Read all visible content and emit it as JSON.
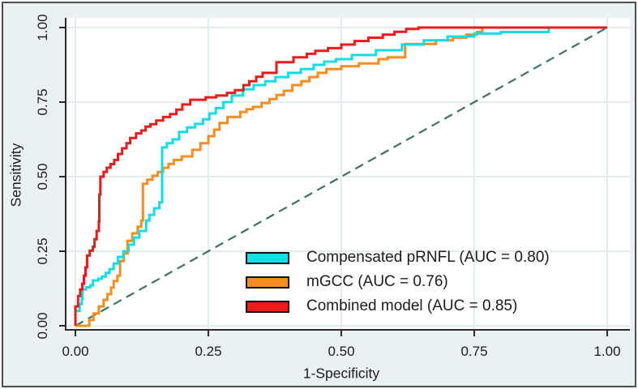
{
  "colors": {
    "figure_background": "#eaf1f3",
    "plot_background": "#ffffff",
    "grid": "#e3edef",
    "axis": "#2b2b2b",
    "text": "#1b1b1b",
    "frame_border": "#4f4f4f"
  },
  "chart_data": {
    "type": "line",
    "subtype": "roc-step-curves",
    "xlabel": "1-Specificity",
    "ylabel": "Sensitivity",
    "xlim": [
      0,
      1
    ],
    "ylim": [
      0,
      1
    ],
    "grid": "both, light bluish-gray on white",
    "legend_position": "inside lower-right of plot",
    "x_ticks": [
      {
        "label": "0.00",
        "value": 0
      },
      {
        "label": "0.25",
        "value": 0.25
      },
      {
        "label": "0.50",
        "value": 0.5
      },
      {
        "label": "0.75",
        "value": 0.75
      },
      {
        "label": "1.00",
        "value": 1
      }
    ],
    "y_ticks": [
      {
        "label": "0.00",
        "value": 0
      },
      {
        "label": "0.25",
        "value": 0.25
      },
      {
        "label": "0.50",
        "value": 0.5
      },
      {
        "label": "0.75",
        "value": 0.75
      },
      {
        "label": "1.00",
        "value": 1
      }
    ],
    "reference_line": {
      "name": "chance diagonal",
      "from": [
        0,
        0
      ],
      "to": [
        1,
        1
      ],
      "style": "dashed",
      "color": "#3c7164"
    },
    "series": [
      {
        "name": "Compensated pRNFL",
        "auc": 0.8,
        "legend_label": "Compensated pRNFL (AUC = 0.80)",
        "color": "#10dde6",
        "points": [
          [
            0,
            0
          ],
          [
            0,
            0.05
          ],
          [
            0.008,
            0.073
          ],
          [
            0.012,
            0.09
          ],
          [
            0.013,
            0.122
          ],
          [
            0.02,
            0.129
          ],
          [
            0.028,
            0.136
          ],
          [
            0.033,
            0.152
          ],
          [
            0.043,
            0.158
          ],
          [
            0.05,
            0.165
          ],
          [
            0.057,
            0.177
          ],
          [
            0.064,
            0.19
          ],
          [
            0.072,
            0.209
          ],
          [
            0.08,
            0.231
          ],
          [
            0.09,
            0.25
          ],
          [
            0.1,
            0.272
          ],
          [
            0.11,
            0.296
          ],
          [
            0.12,
            0.318
          ],
          [
            0.133,
            0.353
          ],
          [
            0.139,
            0.372
          ],
          [
            0.148,
            0.394
          ],
          [
            0.158,
            0.414
          ],
          [
            0.163,
            0.598
          ],
          [
            0.172,
            0.612
          ],
          [
            0.183,
            0.625
          ],
          [
            0.195,
            0.65
          ],
          [
            0.21,
            0.665
          ],
          [
            0.225,
            0.677
          ],
          [
            0.24,
            0.692
          ],
          [
            0.252,
            0.712
          ],
          [
            0.264,
            0.73
          ],
          [
            0.278,
            0.75
          ],
          [
            0.294,
            0.772
          ],
          [
            0.315,
            0.793
          ],
          [
            0.335,
            0.807
          ],
          [
            0.357,
            0.82
          ],
          [
            0.376,
            0.834
          ],
          [
            0.4,
            0.848
          ],
          [
            0.424,
            0.861
          ],
          [
            0.448,
            0.875
          ],
          [
            0.468,
            0.886
          ],
          [
            0.49,
            0.894
          ],
          [
            0.52,
            0.908
          ],
          [
            0.565,
            0.924
          ],
          [
            0.614,
            0.943
          ],
          [
            0.655,
            0.957
          ],
          [
            0.7,
            0.97
          ],
          [
            0.75,
            0.98
          ],
          [
            0.8,
            0.985
          ],
          [
            0.888,
            0.985
          ],
          [
            0.89,
            1
          ],
          [
            1,
            1
          ]
        ]
      },
      {
        "name": "mGCC",
        "auc": 0.76,
        "legend_label": "mGCC (AUC = 0.76)",
        "color": "#f68d1e",
        "points": [
          [
            0,
            0
          ],
          [
            0.026,
            0.019
          ],
          [
            0.034,
            0.041
          ],
          [
            0.044,
            0.065
          ],
          [
            0.053,
            0.087
          ],
          [
            0.06,
            0.106
          ],
          [
            0.067,
            0.128
          ],
          [
            0.072,
            0.15
          ],
          [
            0.079,
            0.168
          ],
          [
            0.084,
            0.217
          ],
          [
            0.091,
            0.242
          ],
          [
            0.098,
            0.285
          ],
          [
            0.107,
            0.31
          ],
          [
            0.117,
            0.332
          ],
          [
            0.124,
            0.353
          ],
          [
            0.127,
            0.476
          ],
          [
            0.135,
            0.49
          ],
          [
            0.145,
            0.503
          ],
          [
            0.155,
            0.516
          ],
          [
            0.165,
            0.53
          ],
          [
            0.175,
            0.543
          ],
          [
            0.185,
            0.556
          ],
          [
            0.2,
            0.568
          ],
          [
            0.22,
            0.59
          ],
          [
            0.235,
            0.612
          ],
          [
            0.25,
            0.636
          ],
          [
            0.261,
            0.658
          ],
          [
            0.271,
            0.68
          ],
          [
            0.286,
            0.7
          ],
          [
            0.31,
            0.717
          ],
          [
            0.322,
            0.726
          ],
          [
            0.334,
            0.734
          ],
          [
            0.35,
            0.747
          ],
          [
            0.365,
            0.76
          ],
          [
            0.378,
            0.774
          ],
          [
            0.392,
            0.788
          ],
          [
            0.408,
            0.807
          ],
          [
            0.425,
            0.82
          ],
          [
            0.44,
            0.834
          ],
          [
            0.456,
            0.848
          ],
          [
            0.472,
            0.861
          ],
          [
            0.5,
            0.87
          ],
          [
            0.533,
            0.88
          ],
          [
            0.57,
            0.894
          ],
          [
            0.587,
            0.9
          ],
          [
            0.62,
            0.945
          ],
          [
            0.678,
            0.957
          ],
          [
            0.71,
            0.966
          ],
          [
            0.735,
            0.976
          ],
          [
            0.755,
            0.985
          ],
          [
            0.765,
            1
          ],
          [
            1,
            1
          ]
        ]
      },
      {
        "name": "Combined model",
        "auc": 0.85,
        "legend_label": "Combined model (AUC = 0.85)",
        "color": "#e81b1d",
        "points": [
          [
            0,
            0
          ],
          [
            0,
            0.065
          ],
          [
            0.005,
            0.1
          ],
          [
            0.009,
            0.122
          ],
          [
            0.013,
            0.141
          ],
          [
            0.016,
            0.168
          ],
          [
            0.019,
            0.196
          ],
          [
            0.022,
            0.236
          ],
          [
            0.027,
            0.252
          ],
          [
            0.033,
            0.265
          ],
          [
            0.036,
            0.29
          ],
          [
            0.04,
            0.318
          ],
          [
            0.044,
            0.35
          ],
          [
            0.045,
            0.44
          ],
          [
            0.047,
            0.5
          ],
          [
            0.053,
            0.516
          ],
          [
            0.059,
            0.53
          ],
          [
            0.066,
            0.542
          ],
          [
            0.073,
            0.556
          ],
          [
            0.08,
            0.576
          ],
          [
            0.088,
            0.595
          ],
          [
            0.096,
            0.612
          ],
          [
            0.103,
            0.63
          ],
          [
            0.114,
            0.645
          ],
          [
            0.124,
            0.655
          ],
          [
            0.132,
            0.668
          ],
          [
            0.141,
            0.676
          ],
          [
            0.152,
            0.688
          ],
          [
            0.165,
            0.7
          ],
          [
            0.178,
            0.71
          ],
          [
            0.19,
            0.725
          ],
          [
            0.201,
            0.742
          ],
          [
            0.216,
            0.758
          ],
          [
            0.245,
            0.766
          ],
          [
            0.265,
            0.772
          ],
          [
            0.285,
            0.781
          ],
          [
            0.3,
            0.79
          ],
          [
            0.316,
            0.807
          ],
          [
            0.327,
            0.82
          ],
          [
            0.34,
            0.835
          ],
          [
            0.352,
            0.848
          ],
          [
            0.378,
            0.884
          ],
          [
            0.41,
            0.9
          ],
          [
            0.435,
            0.912
          ],
          [
            0.451,
            0.922
          ],
          [
            0.475,
            0.931
          ],
          [
            0.5,
            0.943
          ],
          [
            0.525,
            0.955
          ],
          [
            0.551,
            0.966
          ],
          [
            0.578,
            0.976
          ],
          [
            0.6,
            0.986
          ],
          [
            0.622,
            0.995
          ],
          [
            0.645,
            1
          ],
          [
            1,
            1
          ]
        ]
      }
    ]
  }
}
